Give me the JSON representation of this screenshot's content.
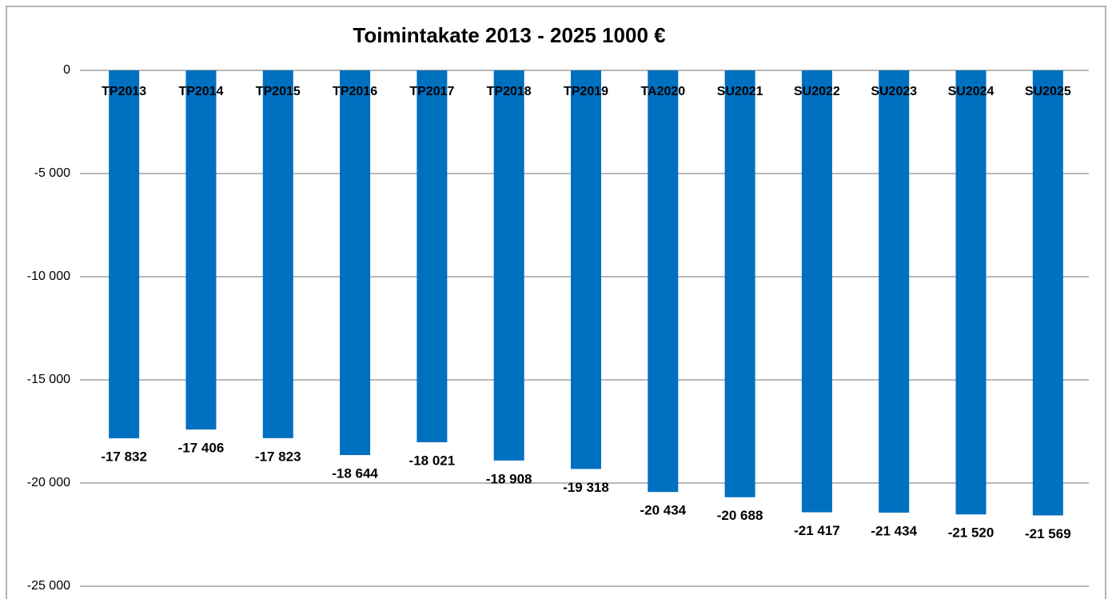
{
  "chart_data": {
    "type": "bar",
    "title": "Toimintakate 2013 - 2025 1000 €",
    "categories": [
      "TP2013",
      "TP2014",
      "TP2015",
      "TP2016",
      "TP2017",
      "TP2018",
      "TP2019",
      "TA2020",
      "SU2021",
      "SU2022",
      "SU2023",
      "SU2024",
      "SU2025"
    ],
    "values": [
      -17832,
      -17406,
      -17823,
      -18644,
      -18021,
      -18908,
      -19318,
      -20434,
      -20688,
      -21417,
      -21434,
      -21520,
      -21569
    ],
    "value_labels": [
      "-17 832",
      "-17 406",
      "-17 823",
      "-18 644",
      "-18 021",
      "-18 908",
      "-19 318",
      "-20 434",
      "-20 688",
      "-21 417",
      "-21 434",
      "-21 520",
      "-21 569"
    ],
    "color": "#0070c0",
    "ylim": [
      -25000,
      0
    ],
    "yticks": [
      0,
      {
        "value": -5000,
        "label": "-5 000"
      },
      {
        "value": -10000,
        "label": "-10 000"
      },
      {
        "value": -15000,
        "label": "-15 000"
      },
      {
        "value": -20000,
        "label": "-20 000"
      },
      {
        "value": -25000,
        "label": "-25 000"
      }
    ],
    "grid": true
  }
}
